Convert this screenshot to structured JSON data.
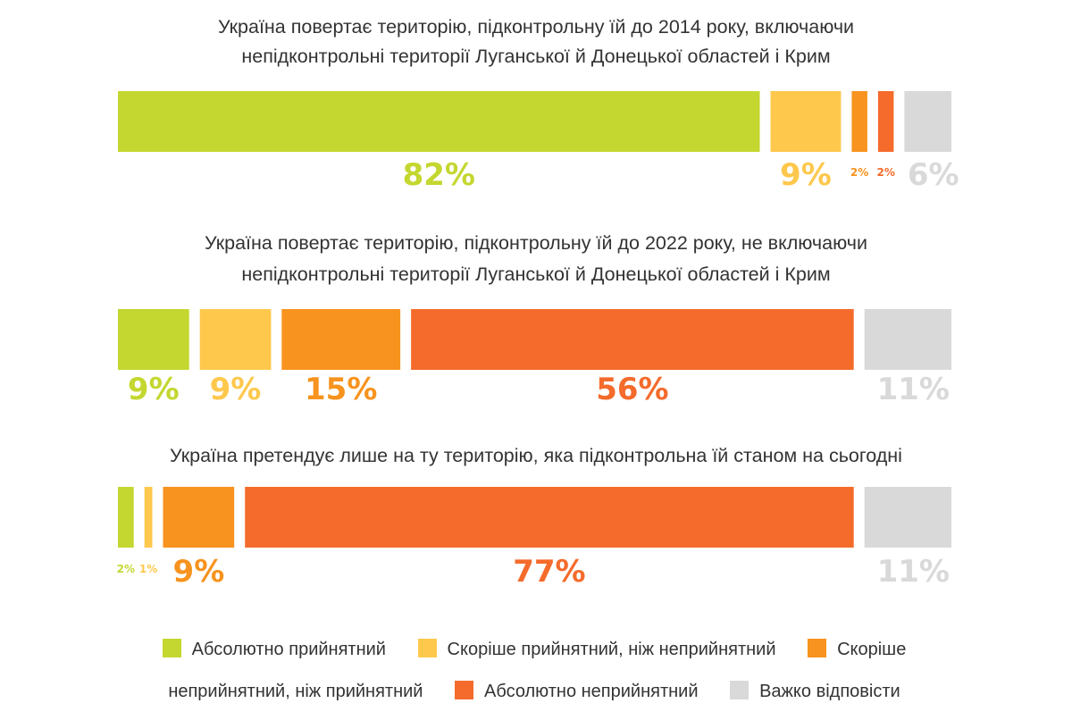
{
  "chart_data": {
    "type": "bar",
    "orientation": "horizontal",
    "stacked": true,
    "unit": "%",
    "categories": [
      "Абсолютно прийнятний",
      "Скоріше прийнятний, ніж неприйнятний",
      "Скоріше неприйнятний, ніж прийнятний",
      "Абсолютно неприйнятний",
      "Важко відповісти"
    ],
    "colors": [
      "#c4d730",
      "#fec84d",
      "#f7931e",
      "#f46b2c",
      "#d9d9d9"
    ],
    "questions": [
      {
        "title_lines": [
          "Україна повертає територію, підконтрольну їй до 2014 року, включаючи",
          "непідконтрольні території Луганської й Донецької областей і Крим"
        ],
        "values": [
          82,
          9,
          2,
          2,
          6
        ],
        "labels": [
          "82%",
          "9%",
          "2%",
          "2%",
          "6%"
        ]
      },
      {
        "title_lines": [
          "Україна повертає територію, підконтрольну їй до 2022 року, не включаючи",
          "непідконтрольні території Луганської й Донецької областей і Крим"
        ],
        "values": [
          9,
          9,
          15,
          56,
          11
        ],
        "labels": [
          "9%",
          "9%",
          "15%",
          "56%",
          "11%"
        ]
      },
      {
        "title_lines": [
          "Україна претендує лише на ту територію, яка підконтрольна їй станом на сьогодні"
        ],
        "values": [
          2,
          1,
          9,
          77,
          11
        ],
        "labels": [
          "2%",
          "1%",
          "9%",
          "77%",
          "11%"
        ]
      }
    ]
  },
  "legend": [
    {
      "label": "Абсолютно прийнятний",
      "color": "#c4d730"
    },
    {
      "label": "Скоріше прийнятний, ніж неприйнятний",
      "color": "#fec84d"
    },
    {
      "label": "Скоріше неприйнятний, ніж прийнятний",
      "color": "#f7931e"
    },
    {
      "label": "Абсолютно неприйнятний",
      "color": "#f46b2c"
    },
    {
      "label": "Важко відповісти",
      "color": "#d9d9d9"
    }
  ]
}
